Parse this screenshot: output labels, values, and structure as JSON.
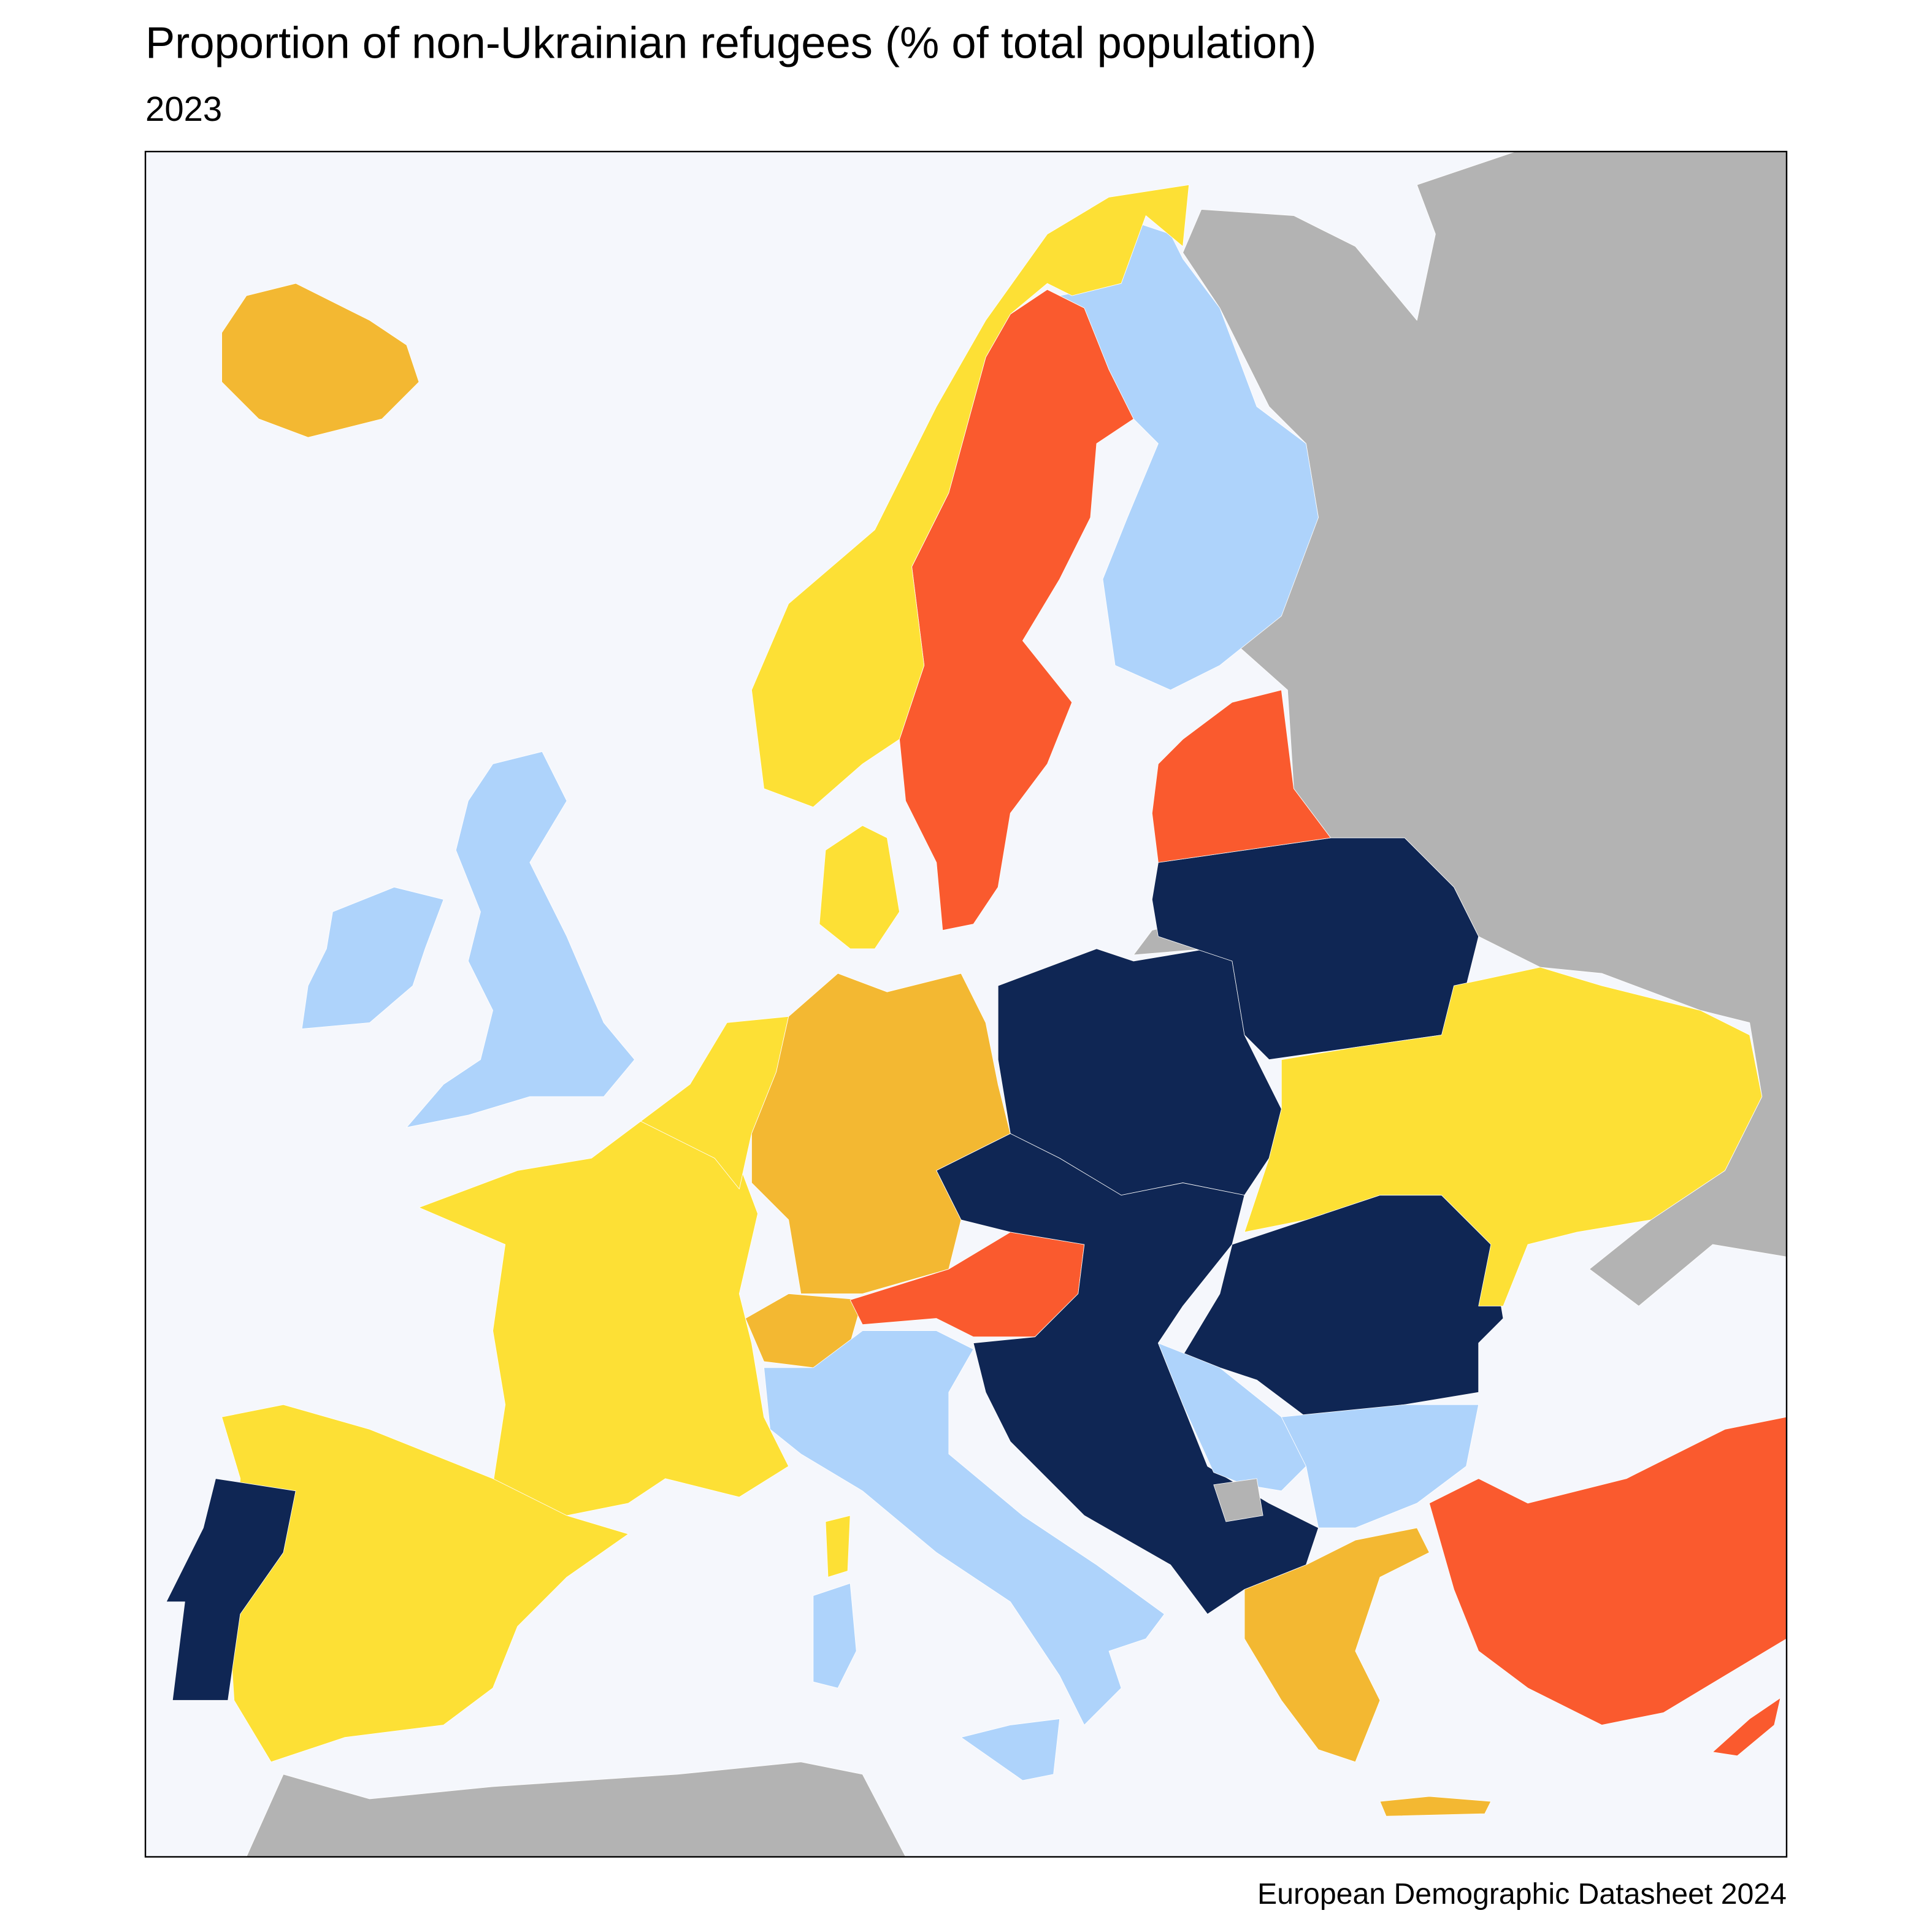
{
  "title": "Proportion of non-Ukrainian refugees (% of total population)",
  "subtitle": "2023",
  "caption": "European Demographic Datasheet 2024"
}
